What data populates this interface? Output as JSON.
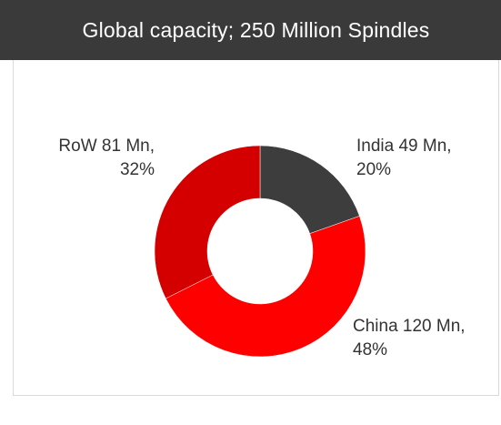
{
  "header": {
    "title": "Global capacity; 250 Million Spindles"
  },
  "chart_data": {
    "type": "pie",
    "donut": true,
    "title": "Global capacity; 250 Million Spindles",
    "categories": [
      "India",
      "China",
      "RoW"
    ],
    "values": [
      49,
      120,
      81
    ],
    "unit": "Mn",
    "percentages": [
      20,
      48,
      32
    ],
    "colors": [
      "#3d3d3d",
      "#ff0000",
      "#d40000"
    ],
    "labels": [
      {
        "line1": "India 49 Mn,",
        "line2": "20%"
      },
      {
        "line1": "China 120 Mn,",
        "line2": "48%"
      },
      {
        "line1": "RoW 81 Mn,",
        "line2": "32%"
      }
    ],
    "legend": "none"
  }
}
